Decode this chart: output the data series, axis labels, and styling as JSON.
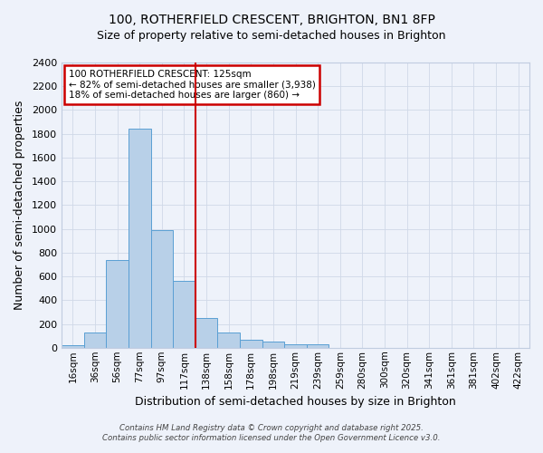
{
  "title": "100, ROTHERFIELD CRESCENT, BRIGHTON, BN1 8FP",
  "subtitle": "Size of property relative to semi-detached houses in Brighton",
  "xlabel": "Distribution of semi-detached houses by size in Brighton",
  "ylabel": "Number of semi-detached properties",
  "bar_labels": [
    "16sqm",
    "36sqm",
    "56sqm",
    "77sqm",
    "97sqm",
    "117sqm",
    "138sqm",
    "158sqm",
    "178sqm",
    "198sqm",
    "219sqm",
    "239sqm",
    "259sqm",
    "280sqm",
    "300sqm",
    "320sqm",
    "341sqm",
    "361sqm",
    "381sqm",
    "402sqm",
    "422sqm"
  ],
  "bar_values": [
    20,
    130,
    735,
    1845,
    990,
    560,
    250,
    130,
    70,
    50,
    25,
    30,
    0,
    0,
    0,
    0,
    0,
    0,
    0,
    0,
    0
  ],
  "bar_color": "#b8d0e8",
  "bar_edge_color": "#5a9fd4",
  "vline_x": 5.5,
  "vline_color": "#cc0000",
  "ylim": [
    0,
    2400
  ],
  "yticks": [
    0,
    200,
    400,
    600,
    800,
    1000,
    1200,
    1400,
    1600,
    1800,
    2000,
    2200,
    2400
  ],
  "annotation_title": "100 ROTHERFIELD CRESCENT: 125sqm",
  "annotation_line1": "← 82% of semi-detached houses are smaller (3,938)",
  "annotation_line2": "18% of semi-detached houses are larger (860) →",
  "footer1": "Contains HM Land Registry data © Crown copyright and database right 2025.",
  "footer2": "Contains public sector information licensed under the Open Government Licence v3.0.",
  "bg_color": "#eef2fa",
  "plot_bg_color": "#eef2fa",
  "grid_color": "#d0d8e8",
  "spine_color": "#c0cce0"
}
